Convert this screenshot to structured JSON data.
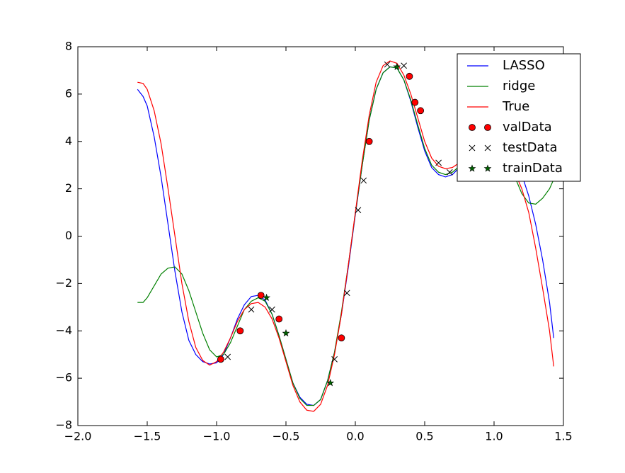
{
  "chart_data": {
    "type": "line",
    "xlim": [
      -2.0,
      1.5
    ],
    "ylim": [
      -8,
      8
    ],
    "xticks": [
      {
        "value": -2.0,
        "label": "−2.0"
      },
      {
        "value": -1.5,
        "label": "−1.5"
      },
      {
        "value": -1.0,
        "label": "−1.0"
      },
      {
        "value": -0.5,
        "label": "−0.5"
      },
      {
        "value": 0,
        "label": "0.0"
      },
      0.5,
      {
        "value": 1.0,
        "label": "1.0"
      },
      1.5
    ],
    "yticks": [
      {
        "value": -8,
        "label": "−8"
      },
      {
        "value": -6,
        "label": "−6"
      },
      {
        "value": -4,
        "label": "−4"
      },
      {
        "value": -2,
        "label": "−2"
      },
      0,
      2,
      4,
      6,
      8
    ],
    "legend": "upper right",
    "series": [
      {
        "name": "LASSO",
        "color": "#0000ff",
        "marker": "none",
        "x": [
          -1.57,
          -1.53,
          -1.5,
          -1.45,
          -1.4,
          -1.35,
          -1.3,
          -1.25,
          -1.2,
          -1.15,
          -1.1,
          -1.05,
          -1.0,
          -0.95,
          -0.9,
          -0.85,
          -0.8,
          -0.75,
          -0.7,
          -0.65,
          -0.6,
          -0.55,
          -0.5,
          -0.45,
          -0.4,
          -0.35,
          -0.3,
          -0.25,
          -0.2,
          -0.15,
          -0.1,
          -0.05,
          0,
          0.05,
          0.1,
          0.15,
          0.2,
          0.25,
          0.3,
          0.35,
          0.4,
          0.45,
          0.5,
          0.55,
          0.6,
          0.65,
          0.7,
          0.75,
          0.8,
          0.9,
          1.0,
          1.1,
          1.15,
          1.2,
          1.25,
          1.3,
          1.35,
          1.4,
          1.43
        ],
        "values": [
          6.2,
          5.9,
          5.5,
          4.2,
          2.5,
          0.5,
          -1.5,
          -3.2,
          -4.4,
          -5.0,
          -5.3,
          -5.4,
          -5.35,
          -5.0,
          -4.3,
          -3.5,
          -2.9,
          -2.55,
          -2.5,
          -2.7,
          -3.3,
          -4.2,
          -5.2,
          -6.2,
          -6.8,
          -7.1,
          -7.15,
          -6.9,
          -6.1,
          -4.9,
          -3.3,
          -1.3,
          0.9,
          3.0,
          4.9,
          6.2,
          6.9,
          7.15,
          7.1,
          6.6,
          5.7,
          4.6,
          3.6,
          2.9,
          2.6,
          2.5,
          2.6,
          2.9,
          3.2,
          3.5,
          3.6,
          3.5,
          3.2,
          2.6,
          1.7,
          0.5,
          -1.0,
          -2.8,
          -4.3
        ]
      },
      {
        "name": "ridge",
        "color": "#008000",
        "marker": "none",
        "x": [
          -1.57,
          -1.53,
          -1.5,
          -1.45,
          -1.4,
          -1.35,
          -1.3,
          -1.25,
          -1.2,
          -1.15,
          -1.1,
          -1.05,
          -1.0,
          -0.95,
          -0.9,
          -0.85,
          -0.8,
          -0.75,
          -0.7,
          -0.65,
          -0.6,
          -0.55,
          -0.5,
          -0.45,
          -0.4,
          -0.35,
          -0.3,
          -0.25,
          -0.2,
          -0.15,
          -0.1,
          -0.05,
          0,
          0.05,
          0.1,
          0.15,
          0.2,
          0.25,
          0.3,
          0.35,
          0.4,
          0.45,
          0.5,
          0.55,
          0.6,
          0.65,
          0.7,
          0.75,
          0.8,
          0.9,
          1.0,
          1.1,
          1.15,
          1.2,
          1.25,
          1.3,
          1.35,
          1.4,
          1.43
        ],
        "values": [
          -2.8,
          -2.8,
          -2.6,
          -2.1,
          -1.6,
          -1.35,
          -1.3,
          -1.6,
          -2.3,
          -3.2,
          -4.1,
          -4.8,
          -5.1,
          -5.0,
          -4.5,
          -3.8,
          -3.1,
          -2.75,
          -2.6,
          -2.75,
          -3.3,
          -4.2,
          -5.2,
          -6.2,
          -6.85,
          -7.15,
          -7.15,
          -6.9,
          -6.1,
          -4.9,
          -3.2,
          -1.2,
          0.95,
          3.0,
          4.9,
          6.2,
          6.9,
          7.15,
          7.1,
          6.6,
          5.75,
          4.7,
          3.7,
          3.0,
          2.7,
          2.6,
          2.7,
          2.95,
          3.2,
          3.5,
          3.6,
          3.3,
          2.5,
          1.8,
          1.4,
          1.35,
          1.6,
          2.0,
          2.4
        ]
      },
      {
        "name": "True",
        "color": "#ff0000",
        "marker": "none",
        "x": [
          -1.57,
          -1.53,
          -1.5,
          -1.45,
          -1.4,
          -1.35,
          -1.3,
          -1.25,
          -1.2,
          -1.15,
          -1.1,
          -1.05,
          -1.0,
          -0.95,
          -0.9,
          -0.85,
          -0.8,
          -0.75,
          -0.7,
          -0.65,
          -0.6,
          -0.55,
          -0.5,
          -0.45,
          -0.4,
          -0.35,
          -0.3,
          -0.25,
          -0.2,
          -0.15,
          -0.1,
          -0.05,
          0,
          0.05,
          0.1,
          0.15,
          0.2,
          0.25,
          0.3,
          0.35,
          0.4,
          0.45,
          0.5,
          0.55,
          0.6,
          0.65,
          0.7,
          0.75,
          0.8,
          0.9,
          1.0,
          1.1,
          1.15,
          1.2,
          1.25,
          1.3,
          1.35,
          1.4,
          1.43
        ],
        "values": [
          6.5,
          6.45,
          6.2,
          5.3,
          3.9,
          2.0,
          0.0,
          -2.0,
          -3.6,
          -4.7,
          -5.25,
          -5.45,
          -5.3,
          -4.9,
          -4.3,
          -3.6,
          -3.1,
          -2.85,
          -2.8,
          -3.0,
          -3.5,
          -4.3,
          -5.3,
          -6.3,
          -7.0,
          -7.35,
          -7.4,
          -7.1,
          -6.3,
          -5.0,
          -3.3,
          -1.2,
          1.0,
          3.2,
          5.1,
          6.5,
          7.2,
          7.4,
          7.3,
          6.8,
          6.0,
          5.0,
          4.0,
          3.3,
          2.95,
          2.85,
          2.9,
          3.1,
          3.3,
          3.5,
          3.5,
          3.2,
          2.7,
          2.0,
          1.0,
          -0.5,
          -2.2,
          -4.0,
          -5.5
        ]
      },
      {
        "name": "valData",
        "color": "#ff0000",
        "marker": "o",
        "x": [
          -0.97,
          -0.83,
          -0.68,
          -0.55,
          -0.1,
          0.1,
          0.39,
          0.43,
          0.47
        ],
        "values": [
          -5.2,
          -4.0,
          -2.5,
          -3.5,
          -4.3,
          4.0,
          6.75,
          5.65,
          5.3
        ]
      },
      {
        "name": "testData",
        "color": "#000000",
        "marker": "x",
        "x": [
          -0.92,
          -0.75,
          -0.6,
          -0.15,
          -0.06,
          0.02,
          0.06,
          0.23,
          0.35,
          0.6,
          0.68
        ],
        "values": [
          -5.1,
          -3.1,
          -3.1,
          -5.2,
          -2.4,
          1.1,
          2.35,
          7.25,
          7.2,
          3.1,
          2.7
        ]
      },
      {
        "name": "trainData",
        "color": "#006400",
        "marker": "*",
        "x": [
          -0.64,
          -0.5,
          -0.18,
          0.3
        ],
        "values": [
          -2.6,
          -4.1,
          -6.2,
          7.15
        ]
      }
    ]
  }
}
